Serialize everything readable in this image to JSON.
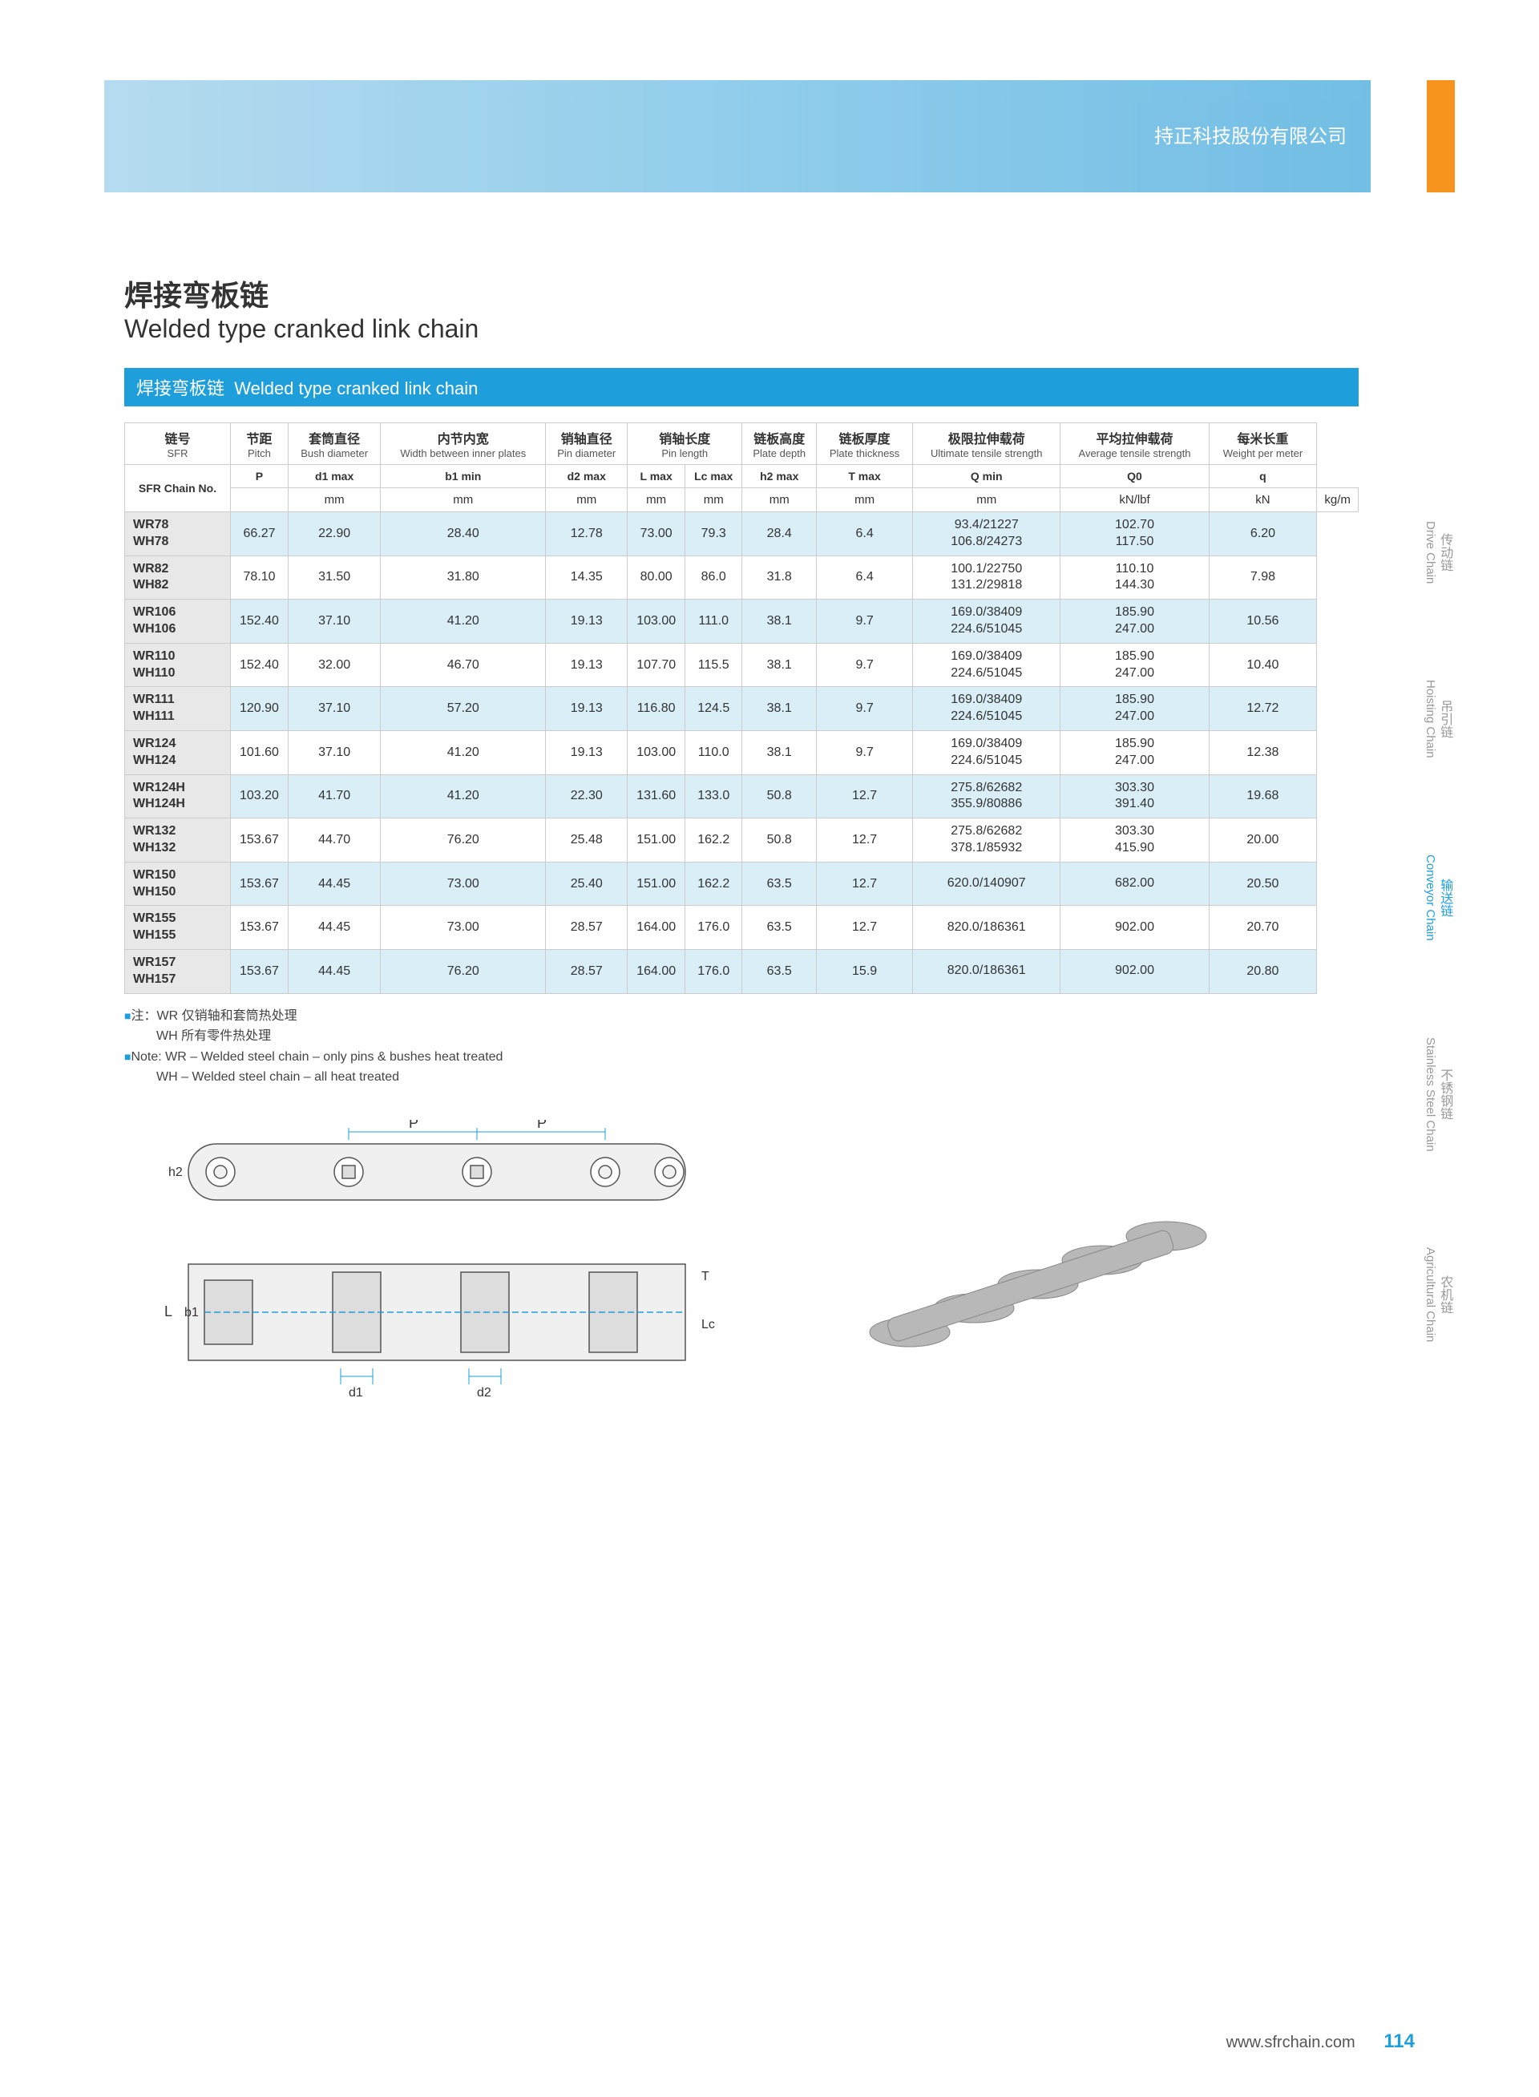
{
  "banner_text": "持正科技股份有限公司",
  "title_cn": "焊接弯板链",
  "title_en": "Welded type cranked link chain",
  "section_header_cn": "焊接弯板链",
  "section_header_en": "Welded type cranked link chain",
  "headers": [
    {
      "cn": "链号",
      "en": "SFR"
    },
    {
      "cn": "节距",
      "en": "Pitch"
    },
    {
      "cn": "套筒直径",
      "en": "Bush diameter"
    },
    {
      "cn": "内节内宽",
      "en": "Width between inner plates"
    },
    {
      "cn": "销轴直径",
      "en": "Pin diameter"
    },
    {
      "cn": "销轴长度",
      "en": "Pin length"
    },
    {
      "cn": "链板高度",
      "en": "Plate depth"
    },
    {
      "cn": "链板厚度",
      "en": "Plate thickness"
    },
    {
      "cn": "极限拉伸载荷",
      "en": "Ultimate tensile strength"
    },
    {
      "cn": "平均拉伸载荷",
      "en": "Average tensile strength"
    },
    {
      "cn": "每米长重",
      "en": "Weight per meter"
    }
  ],
  "sub": [
    "SFR Chain No.",
    "P",
    "d1 max",
    "b1 min",
    "d2 max",
    "L max",
    "Lc max",
    "h2 max",
    "T max",
    "Q min",
    "Q0",
    "q"
  ],
  "units": [
    "",
    "mm",
    "mm",
    "mm",
    "mm",
    "mm",
    "mm",
    "mm",
    "mm",
    "kN/lbf",
    "kN",
    "kg/m"
  ],
  "rows": [
    {
      "nos": [
        "WR78",
        "WH78"
      ],
      "p": "66.27",
      "d1": "22.90",
      "b1": "28.40",
      "d2": "12.78",
      "l": "73.00",
      "lc": "79.3",
      "h2": "28.4",
      "t": "6.4",
      "q": [
        "93.4/21227",
        "106.8/24273"
      ],
      "q0": [
        "102.70",
        "117.50"
      ],
      "wt": "6.20"
    },
    {
      "nos": [
        "WR82",
        "WH82"
      ],
      "p": "78.10",
      "d1": "31.50",
      "b1": "31.80",
      "d2": "14.35",
      "l": "80.00",
      "lc": "86.0",
      "h2": "31.8",
      "t": "6.4",
      "q": [
        "100.1/22750",
        "131.2/29818"
      ],
      "q0": [
        "110.10",
        "144.30"
      ],
      "wt": "7.98"
    },
    {
      "nos": [
        "WR106",
        "WH106"
      ],
      "p": "152.40",
      "d1": "37.10",
      "b1": "41.20",
      "d2": "19.13",
      "l": "103.00",
      "lc": "111.0",
      "h2": "38.1",
      "t": "9.7",
      "q": [
        "169.0/38409",
        "224.6/51045"
      ],
      "q0": [
        "185.90",
        "247.00"
      ],
      "wt": "10.56"
    },
    {
      "nos": [
        "WR110",
        "WH110"
      ],
      "p": "152.40",
      "d1": "32.00",
      "b1": "46.70",
      "d2": "19.13",
      "l": "107.70",
      "lc": "115.5",
      "h2": "38.1",
      "t": "9.7",
      "q": [
        "169.0/38409",
        "224.6/51045"
      ],
      "q0": [
        "185.90",
        "247.00"
      ],
      "wt": "10.40"
    },
    {
      "nos": [
        "WR111",
        "WH111"
      ],
      "p": "120.90",
      "d1": "37.10",
      "b1": "57.20",
      "d2": "19.13",
      "l": "116.80",
      "lc": "124.5",
      "h2": "38.1",
      "t": "9.7",
      "q": [
        "169.0/38409",
        "224.6/51045"
      ],
      "q0": [
        "185.90",
        "247.00"
      ],
      "wt": "12.72"
    },
    {
      "nos": [
        "WR124",
        "WH124"
      ],
      "p": "101.60",
      "d1": "37.10",
      "b1": "41.20",
      "d2": "19.13",
      "l": "103.00",
      "lc": "110.0",
      "h2": "38.1",
      "t": "9.7",
      "q": [
        "169.0/38409",
        "224.6/51045"
      ],
      "q0": [
        "185.90",
        "247.00"
      ],
      "wt": "12.38"
    },
    {
      "nos": [
        "WR124H",
        "WH124H"
      ],
      "p": "103.20",
      "d1": "41.70",
      "b1": "41.20",
      "d2": "22.30",
      "l": "131.60",
      "lc": "133.0",
      "h2": "50.8",
      "t": "12.7",
      "q": [
        "275.8/62682",
        "355.9/80886"
      ],
      "q0": [
        "303.30",
        "391.40"
      ],
      "wt": "19.68"
    },
    {
      "nos": [
        "WR132",
        "WH132"
      ],
      "p": "153.67",
      "d1": "44.70",
      "b1": "76.20",
      "d2": "25.48",
      "l": "151.00",
      "lc": "162.2",
      "h2": "50.8",
      "t": "12.7",
      "q": [
        "275.8/62682",
        "378.1/85932"
      ],
      "q0": [
        "303.30",
        "415.90"
      ],
      "wt": "20.00"
    },
    {
      "nos": [
        "WR150",
        "WH150"
      ],
      "p": "153.67",
      "d1": "44.45",
      "b1": "73.00",
      "d2": "25.40",
      "l": "151.00",
      "lc": "162.2",
      "h2": "63.5",
      "t": "12.7",
      "q": [
        "620.0/140907"
      ],
      "q0": [
        "682.00"
      ],
      "wt": "20.50"
    },
    {
      "nos": [
        "WR155",
        "WH155"
      ],
      "p": "153.67",
      "d1": "44.45",
      "b1": "73.00",
      "d2": "28.57",
      "l": "164.00",
      "lc": "176.0",
      "h2": "63.5",
      "t": "12.7",
      "q": [
        "820.0/186361"
      ],
      "q0": [
        "902.00"
      ],
      "wt": "20.70"
    },
    {
      "nos": [
        "WR157",
        "WH157"
      ],
      "p": "153.67",
      "d1": "44.45",
      "b1": "76.20",
      "d2": "28.57",
      "l": "164.00",
      "lc": "176.0",
      "h2": "63.5",
      "t": "15.9",
      "q": [
        "820.0/186361"
      ],
      "q0": [
        "902.00"
      ],
      "wt": "20.80"
    }
  ],
  "notes": {
    "cn1": "注：WR 仅销轴和套筒热处理",
    "cn2": "WH 所有零件热处理",
    "en1": "Note: WR – Welded steel chain – only pins & bushes heat treated",
    "en2": "WH – Welded steel chain – all heat treated"
  },
  "diagram_labels": {
    "p": "P",
    "h2": "h2",
    "l": "L",
    "b1": "b1",
    "d1": "d1",
    "d2": "d2",
    "t": "T",
    "lc": "Lc"
  },
  "side_tabs": [
    {
      "cn": "传动链",
      "en": "Drive Chain",
      "active": false
    },
    {
      "cn": "吊引链",
      "en": "Hoisting Chain",
      "active": false
    },
    {
      "cn": "输送链",
      "en": "Conveyor Chain",
      "active": true
    },
    {
      "cn": "不锈钢链",
      "en": "Stainless Steel Chain",
      "active": false
    },
    {
      "cn": "农机链",
      "en": "Agricultural Chain",
      "active": false
    }
  ],
  "footer_url": "www.sfrchain.com",
  "page_no": "114"
}
